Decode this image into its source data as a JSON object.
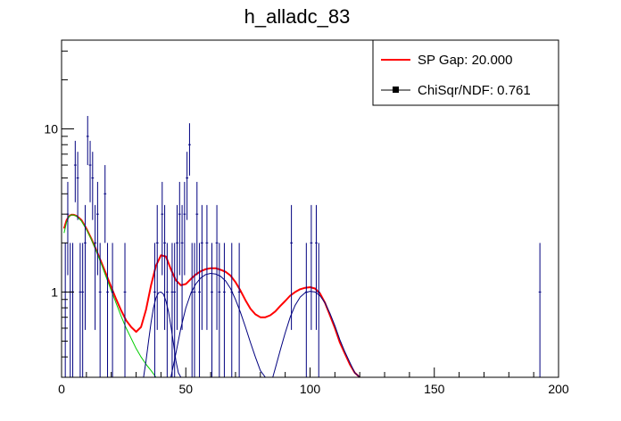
{
  "chart_data": {
    "type": "scatter",
    "title": "h_alladc_83",
    "xlabel": "",
    "ylabel": "",
    "xlim": [
      0,
      200
    ],
    "ylim": [
      0.3,
      35
    ],
    "y_scale": "log",
    "x_ticks": [
      0,
      50,
      100,
      150,
      200
    ],
    "x_tick_labels": [
      "0",
      "50",
      "100",
      "150",
      "200"
    ],
    "y_ticks": [
      1,
      10
    ],
    "y_tick_labels": [
      "1",
      "10"
    ],
    "grid": false,
    "legend_position": "top-right",
    "legend": [
      {
        "label": "SP Gap: 20.000",
        "style": "line",
        "color": "#ff0000"
      },
      {
        "label": "ChiSqr/NDF: 0.761",
        "style": "marker",
        "color": "#000000"
      }
    ],
    "histogram": {
      "name": "data",
      "color": "#00007f",
      "points": [
        [
          1,
          1
        ],
        [
          2,
          3
        ],
        [
          3,
          1
        ],
        [
          4,
          1
        ],
        [
          5,
          6
        ],
        [
          6,
          5
        ],
        [
          7,
          1
        ],
        [
          8,
          1
        ],
        [
          9,
          2
        ],
        [
          10,
          9
        ],
        [
          11,
          6
        ],
        [
          12,
          5
        ],
        [
          13,
          2
        ],
        [
          14,
          3
        ],
        [
          15,
          1
        ],
        [
          17,
          4
        ],
        [
          18,
          1
        ],
        [
          20,
          1
        ],
        [
          25,
          1
        ],
        [
          37,
          1
        ],
        [
          38,
          2
        ],
        [
          40,
          3
        ],
        [
          41,
          2
        ],
        [
          42,
          1
        ],
        [
          44,
          1
        ],
        [
          45,
          1
        ],
        [
          46,
          2
        ],
        [
          47,
          3
        ],
        [
          48,
          2
        ],
        [
          49,
          3
        ],
        [
          50,
          5
        ],
        [
          51,
          8
        ],
        [
          52,
          1
        ],
        [
          53,
          1
        ],
        [
          54,
          3
        ],
        [
          55,
          1
        ],
        [
          56,
          2
        ],
        [
          58,
          2
        ],
        [
          60,
          1
        ],
        [
          62,
          2
        ],
        [
          63,
          1
        ],
        [
          65,
          1
        ],
        [
          68,
          1
        ],
        [
          71,
          1
        ],
        [
          92,
          2
        ],
        [
          98,
          1
        ],
        [
          100,
          2
        ],
        [
          102,
          2
        ],
        [
          103,
          1
        ],
        [
          192,
          1
        ]
      ]
    },
    "series": [
      {
        "name": "total fit",
        "color": "#ff0000",
        "x": [
          1,
          2,
          3,
          4,
          5,
          6,
          7,
          8,
          10,
          12,
          14,
          16,
          18,
          20,
          22,
          24,
          26,
          28,
          30,
          32,
          34,
          36,
          38,
          40,
          42,
          44,
          46,
          48,
          50,
          52,
          54,
          56,
          58,
          60,
          62,
          64,
          66,
          68,
          70,
          72,
          74,
          76,
          78,
          80,
          82,
          84,
          86,
          88,
          90,
          92,
          94,
          96,
          98,
          100,
          102,
          104,
          106,
          108,
          110,
          112,
          114,
          116,
          118,
          120
        ],
        "y": [
          2.45,
          2.75,
          2.92,
          2.98,
          2.97,
          2.93,
          2.85,
          2.76,
          2.45,
          2.12,
          1.8,
          1.52,
          1.28,
          1.07,
          0.9,
          0.77,
          0.67,
          0.61,
          0.57,
          0.61,
          0.78,
          1.1,
          1.45,
          1.68,
          1.65,
          1.38,
          1.18,
          1.1,
          1.12,
          1.2,
          1.28,
          1.34,
          1.38,
          1.4,
          1.4,
          1.37,
          1.33,
          1.26,
          1.15,
          1.02,
          0.89,
          0.79,
          0.73,
          0.7,
          0.7,
          0.72,
          0.76,
          0.82,
          0.88,
          0.95,
          1.0,
          1.04,
          1.06,
          1.07,
          1.05,
          0.98,
          0.86,
          0.72,
          0.6,
          0.49,
          0.42,
          0.36,
          0.32,
          0.29
        ]
      },
      {
        "name": "exponential component",
        "color": "#00cc00",
        "x": [
          1,
          2,
          3,
          4,
          5,
          6,
          7,
          8,
          10,
          12,
          14,
          16,
          18,
          20,
          22,
          24,
          26,
          28,
          30,
          32,
          34,
          36,
          38
        ],
        "y": [
          2.3,
          2.68,
          2.9,
          2.97,
          2.96,
          2.91,
          2.82,
          2.72,
          2.42,
          2.1,
          1.78,
          1.48,
          1.23,
          1.02,
          0.85,
          0.71,
          0.6,
          0.52,
          0.45,
          0.4,
          0.36,
          0.33,
          0.3
        ]
      },
      {
        "name": "gaussian peak 1",
        "color": "#00007f",
        "x": [
          33,
          34,
          35,
          36,
          37,
          38,
          39,
          40,
          41,
          42,
          43,
          44,
          45,
          46,
          47,
          48
        ],
        "y": [
          0.3,
          0.38,
          0.5,
          0.65,
          0.8,
          0.92,
          0.99,
          1.0,
          0.97,
          0.88,
          0.76,
          0.62,
          0.49,
          0.38,
          0.32,
          0.29
        ]
      },
      {
        "name": "gaussian peak 2",
        "color": "#00007f",
        "x": [
          44,
          46,
          48,
          50,
          52,
          54,
          56,
          58,
          60,
          62,
          64,
          66,
          68,
          70,
          72,
          74,
          76,
          78,
          80,
          82
        ],
        "y": [
          0.29,
          0.42,
          0.6,
          0.8,
          0.98,
          1.12,
          1.22,
          1.28,
          1.3,
          1.29,
          1.25,
          1.17,
          1.05,
          0.9,
          0.75,
          0.61,
          0.49,
          0.4,
          0.33,
          0.29
        ]
      },
      {
        "name": "gaussian peak 3",
        "color": "#00007f",
        "x": [
          85,
          86,
          88,
          90,
          92,
          94,
          96,
          98,
          100,
          102,
          104,
          106,
          108,
          110,
          112,
          114,
          116,
          118,
          120
        ],
        "y": [
          0.3,
          0.34,
          0.44,
          0.56,
          0.7,
          0.83,
          0.93,
          0.99,
          1.01,
          1.0,
          0.95,
          0.86,
          0.74,
          0.62,
          0.51,
          0.43,
          0.37,
          0.32,
          0.29
        ]
      }
    ]
  }
}
